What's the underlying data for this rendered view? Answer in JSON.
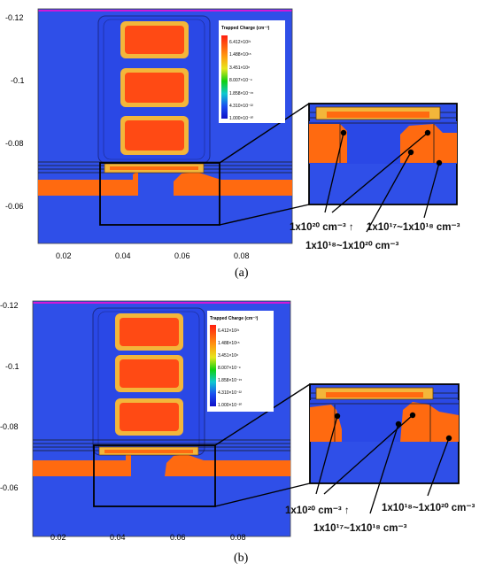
{
  "colors": {
    "background": "#2f4fe8",
    "high": "#ff4a14",
    "orange": "#ff6a10",
    "gold": "#f3b63a",
    "magenta": "#d018d8",
    "frame": "#111111"
  },
  "legend": {
    "title": "Trapped Charge (cm⁻³)",
    "values": [
      "6.412×10²¹",
      "1.488×10¹⁵",
      "3.451×10⁸",
      "8.007×10⁻⁹",
      "1.858×10⁻¹⁵",
      "4.310×10⁻²²",
      "1.000×10⁻³⁰"
    ],
    "gradient": [
      "#ff1e10",
      "#ff9a10",
      "#e6e61e",
      "#10d010",
      "#10c8d0",
      "#1a4ff0",
      "#1010c8"
    ]
  },
  "axes": {
    "y_ticks": [
      "-0.12",
      "-0.1",
      "-0.08",
      "-0.06"
    ],
    "x_ticks": [
      "0.02",
      "0.04",
      "0.06",
      "0.08"
    ]
  },
  "panel_a": {
    "caption": "(a)",
    "label1": "1x10²⁰ cm⁻³ ↑",
    "label2": "1x10¹⁸~1x10²⁰ cm⁻³",
    "label3": "1x10¹⁷~1x10¹⁸ cm⁻³"
  },
  "panel_b": {
    "caption": "(b)",
    "label1": "1x10²⁰ cm⁻³ ↑",
    "label2": "1x10¹⁷~1x10¹⁸ cm⁻³",
    "label3": "1x10¹⁸~1x10²⁰ cm⁻³"
  }
}
